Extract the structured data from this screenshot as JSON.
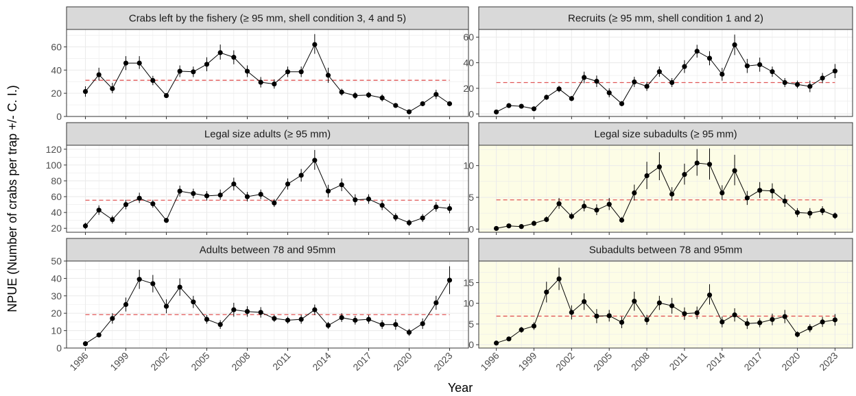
{
  "figure": {
    "ylabel": "NPUE (Number of crabs per trap +/- C. I.)",
    "xlabel": "Year"
  },
  "colors": {
    "panel_bg": "#ffffff",
    "panel_bg_highlight": "#fdfde6",
    "strip_bg": "#d9d9d9",
    "grid": "#ebebeb",
    "series": "#000000",
    "mean_line": "#e05555"
  },
  "chart_data": [
    {
      "type": "line",
      "title": "Crabs left by the fishery (≥ 95 mm, shell condition 3, 4 and 5)",
      "highlight": false,
      "x": [
        1996,
        1997,
        1998,
        1999,
        2000,
        2001,
        2002,
        2003,
        2004,
        2005,
        2006,
        2007,
        2008,
        2009,
        2010,
        2011,
        2012,
        2013,
        2014,
        2015,
        2016,
        2017,
        2018,
        2019,
        2020,
        2021,
        2022,
        2023
      ],
      "y": [
        21.5,
        36,
        24,
        46,
        46,
        31,
        18,
        39,
        38.5,
        45,
        55,
        51,
        39,
        29.5,
        28,
        38.5,
        38.5,
        62,
        35.5,
        21,
        18,
        18.5,
        16,
        9.5,
        4,
        11,
        19,
        11
      ],
      "ci_low": [
        17,
        31,
        20,
        40,
        41,
        27,
        16,
        34,
        34,
        39,
        49,
        45,
        34,
        25,
        24,
        34,
        34,
        54,
        29,
        18,
        15,
        16,
        13,
        8,
        3,
        9,
        15,
        9
      ],
      "ci_high": [
        26,
        42,
        29,
        52,
        52,
        35,
        20,
        44,
        43,
        51,
        62,
        57,
        44,
        34,
        32,
        43,
        43,
        71,
        42,
        24,
        21,
        21,
        19,
        11,
        5,
        13,
        23,
        13
      ],
      "mean": 31.2,
      "mean_span": [
        1996,
        2023
      ],
      "ylim": [
        0,
        75
      ],
      "yticks": [
        0,
        20,
        40,
        60
      ],
      "xticks": [
        1996,
        1999,
        2002,
        2005,
        2008,
        2011,
        2014,
        2017,
        2020,
        2023
      ],
      "grid": true,
      "show_xticks": false
    },
    {
      "type": "line",
      "title": "Recruits (≥ 95 mm, shell condition 1 and 2)",
      "highlight": false,
      "x": [
        1996,
        1997,
        1998,
        1999,
        2000,
        2001,
        2002,
        2003,
        2004,
        2005,
        2006,
        2007,
        2008,
        2009,
        2010,
        2011,
        2012,
        2013,
        2014,
        2015,
        2016,
        2017,
        2018,
        2019,
        2020,
        2021,
        2022,
        2023
      ],
      "y": [
        1.5,
        6.5,
        6,
        4,
        13,
        19.5,
        12,
        28.5,
        25.5,
        16.5,
        8,
        25,
        21.5,
        33,
        24.5,
        37,
        49,
        43.5,
        31,
        54,
        37.5,
        38.5,
        33,
        24.5,
        23,
        21.5,
        28,
        33.5
      ],
      "ci_low": [
        0.5,
        5,
        4.5,
        3,
        11,
        17,
        10,
        24,
        21,
        13,
        6,
        21,
        18,
        29,
        21,
        32,
        44,
        38,
        26,
        46,
        32,
        33,
        29,
        21,
        20,
        17,
        24,
        28
      ],
      "ci_high": [
        2.5,
        8,
        7.5,
        5,
        15,
        22,
        14,
        33,
        30,
        20,
        10,
        29,
        25,
        37,
        28,
        42,
        54,
        49,
        36,
        62,
        43,
        44,
        37,
        28,
        26,
        26,
        32,
        39
      ],
      "mean": 24.5,
      "mean_span": [
        1996,
        2023
      ],
      "ylim": [
        -2,
        66
      ],
      "yticks": [
        0,
        20,
        40,
        60
      ],
      "xticks": [
        1996,
        1999,
        2002,
        2005,
        2008,
        2011,
        2014,
        2017,
        2020,
        2023
      ],
      "grid": true,
      "show_xticks": false
    },
    {
      "type": "line",
      "title": "Legal size adults (≥ 95 mm)",
      "highlight": false,
      "x": [
        1996,
        1997,
        1998,
        1999,
        2000,
        2001,
        2002,
        2003,
        2004,
        2005,
        2006,
        2007,
        2008,
        2009,
        2010,
        2011,
        2012,
        2013,
        2014,
        2015,
        2016,
        2017,
        2018,
        2019,
        2020,
        2021,
        2022,
        2023
      ],
      "y": [
        23,
        43,
        31,
        50,
        58,
        51,
        30,
        67,
        64,
        61,
        62,
        76,
        60,
        63,
        52,
        76,
        87,
        106,
        67,
        75,
        56,
        57,
        49,
        34,
        27,
        33,
        47,
        45
      ],
      "ci_low": [
        19,
        37,
        26,
        44,
        52,
        46,
        27,
        60,
        58,
        55,
        56,
        68,
        54,
        57,
        47,
        69,
        79,
        94,
        59,
        67,
        49,
        51,
        43,
        29,
        23,
        28,
        41,
        39
      ],
      "ci_high": [
        27,
        49,
        36,
        56,
        65,
        56,
        33,
        74,
        70,
        67,
        69,
        84,
        66,
        69,
        57,
        83,
        95,
        119,
        75,
        83,
        63,
        63,
        55,
        39,
        31,
        38,
        53,
        51
      ],
      "mean": 55.5,
      "mean_span": [
        1996,
        2023
      ],
      "ylim": [
        15,
        125
      ],
      "yticks": [
        20,
        40,
        60,
        80,
        100,
        120
      ],
      "xticks": [
        1996,
        1999,
        2002,
        2005,
        2008,
        2011,
        2014,
        2017,
        2020,
        2023
      ],
      "grid": true,
      "show_xticks": false
    },
    {
      "type": "line",
      "title": "Legal size subadults (≥ 95 mm)",
      "highlight": true,
      "x": [
        1996,
        1997,
        1998,
        1999,
        2000,
        2001,
        2002,
        2003,
        2004,
        2005,
        2006,
        2007,
        2008,
        2009,
        2010,
        2011,
        2012,
        2013,
        2014,
        2015,
        2016,
        2017,
        2018,
        2019,
        2020,
        2021,
        2022,
        2023
      ],
      "y": [
        0.1,
        0.5,
        0.4,
        0.9,
        1.5,
        4.0,
        2.0,
        3.6,
        3.0,
        3.9,
        1.4,
        5.7,
        8.4,
        9.8,
        5.5,
        8.6,
        10.4,
        10.2,
        5.7,
        9.2,
        4.9,
        6.1,
        6.0,
        4.4,
        2.6,
        2.5,
        2.9,
        2.1
      ],
      "ci_low": [
        0,
        0.3,
        0.2,
        0.6,
        1.1,
        3.2,
        1.5,
        2.8,
        2.2,
        3.0,
        1.0,
        4.5,
        6.3,
        7.7,
        4.5,
        7.0,
        8.4,
        7.8,
        4.6,
        6.9,
        3.8,
        4.9,
        4.8,
        3.5,
        1.9,
        1.7,
        2.2,
        1.6
      ],
      "ci_high": [
        0.3,
        0.8,
        0.6,
        1.3,
        2.0,
        4.9,
        2.6,
        4.5,
        3.9,
        4.9,
        1.9,
        7.0,
        10.6,
        12.1,
        6.6,
        10.3,
        12.6,
        12.7,
        6.9,
        11.7,
        6.0,
        7.4,
        7.2,
        5.4,
        3.3,
        3.3,
        3.6,
        2.6
      ],
      "mean": 4.6,
      "mean_span": [
        1996,
        2022
      ],
      "ylim": [
        -0.5,
        13.2
      ],
      "yticks": [
        0,
        5,
        10
      ],
      "xticks": [
        1996,
        1999,
        2002,
        2005,
        2008,
        2011,
        2014,
        2017,
        2020,
        2023
      ],
      "grid": true,
      "show_xticks": false
    },
    {
      "type": "line",
      "title": "Adults between 78 and 95mm",
      "highlight": false,
      "x": [
        1996,
        1997,
        1998,
        1999,
        2000,
        2001,
        2002,
        2003,
        2004,
        2005,
        2006,
        2007,
        2008,
        2009,
        2010,
        2011,
        2012,
        2013,
        2014,
        2015,
        2016,
        2017,
        2018,
        2019,
        2020,
        2021,
        2022,
        2023
      ],
      "y": [
        2.5,
        7.5,
        17,
        25,
        39.5,
        37,
        24,
        35,
        26.5,
        16.5,
        13.5,
        22,
        21,
        20.5,
        17,
        16,
        16.5,
        22,
        13,
        17.5,
        16,
        16.5,
        13.5,
        13.5,
        9,
        14,
        26,
        39
      ],
      "ci_low": [
        1.5,
        6.5,
        14,
        21,
        34,
        32,
        20,
        30,
        23,
        14,
        11,
        18,
        18,
        17.5,
        15,
        14,
        14,
        19,
        11,
        15,
        13.5,
        14,
        11,
        10.5,
        7,
        11,
        22,
        31
      ],
      "ci_high": [
        3.5,
        8.5,
        20,
        29,
        45,
        42,
        28,
        40,
        30,
        19,
        16,
        26,
        24,
        23.5,
        19,
        18,
        19,
        25,
        15,
        20,
        18.5,
        19,
        16,
        16.5,
        11,
        17,
        30,
        47
      ],
      "mean": 19.2,
      "mean_span": [
        1996,
        2023
      ],
      "ylim": [
        0,
        50
      ],
      "yticks": [
        0,
        10,
        20,
        30,
        40,
        50
      ],
      "xticks": [
        1996,
        1999,
        2002,
        2005,
        2008,
        2011,
        2014,
        2017,
        2020,
        2023
      ],
      "grid": true,
      "show_xticks": true
    },
    {
      "type": "line",
      "title": "Subadults between 78 and 95mm",
      "highlight": true,
      "x": [
        1996,
        1997,
        1998,
        1999,
        2000,
        2001,
        2002,
        2003,
        2004,
        2005,
        2006,
        2007,
        2008,
        2009,
        2010,
        2011,
        2012,
        2013,
        2014,
        2015,
        2016,
        2017,
        2018,
        2019,
        2020,
        2021,
        2022,
        2023
      ],
      "y": [
        0.4,
        1.4,
        3.6,
        4.5,
        12.7,
        15.9,
        7.8,
        10.4,
        6.9,
        7.0,
        5.4,
        10.5,
        6.0,
        10.1,
        9.4,
        7.5,
        7.7,
        12.0,
        5.5,
        7.2,
        5.1,
        5.3,
        6.1,
        6.8,
        2.5,
        4.0,
        5.5,
        6.0
      ],
      "ci_low": [
        0.2,
        1.0,
        2.9,
        3.6,
        10.2,
        13.2,
        6.1,
        8.4,
        5.2,
        5.6,
        4.0,
        8.2,
        4.8,
        8.4,
        7.5,
        6.0,
        6.2,
        9.7,
        4.2,
        5.6,
        3.8,
        4.2,
        4.7,
        5.2,
        1.8,
        3.0,
        4.3,
        4.6
      ],
      "ci_high": [
        0.6,
        1.8,
        4.3,
        5.4,
        15.2,
        18.6,
        9.5,
        12.4,
        8.6,
        8.4,
        6.8,
        12.8,
        7.2,
        11.8,
        11.3,
        9.0,
        9.2,
        14.6,
        6.8,
        8.8,
        6.4,
        6.4,
        7.5,
        8.4,
        3.2,
        5.0,
        6.7,
        7.4
      ],
      "mean": 6.9,
      "mean_span": [
        1996,
        2023
      ],
      "ylim": [
        -0.8,
        20.2
      ],
      "yticks": [
        0,
        5,
        10,
        15
      ],
      "xticks": [
        1996,
        1999,
        2002,
        2005,
        2008,
        2011,
        2014,
        2017,
        2020,
        2023
      ],
      "grid": true,
      "show_xticks": true
    }
  ]
}
